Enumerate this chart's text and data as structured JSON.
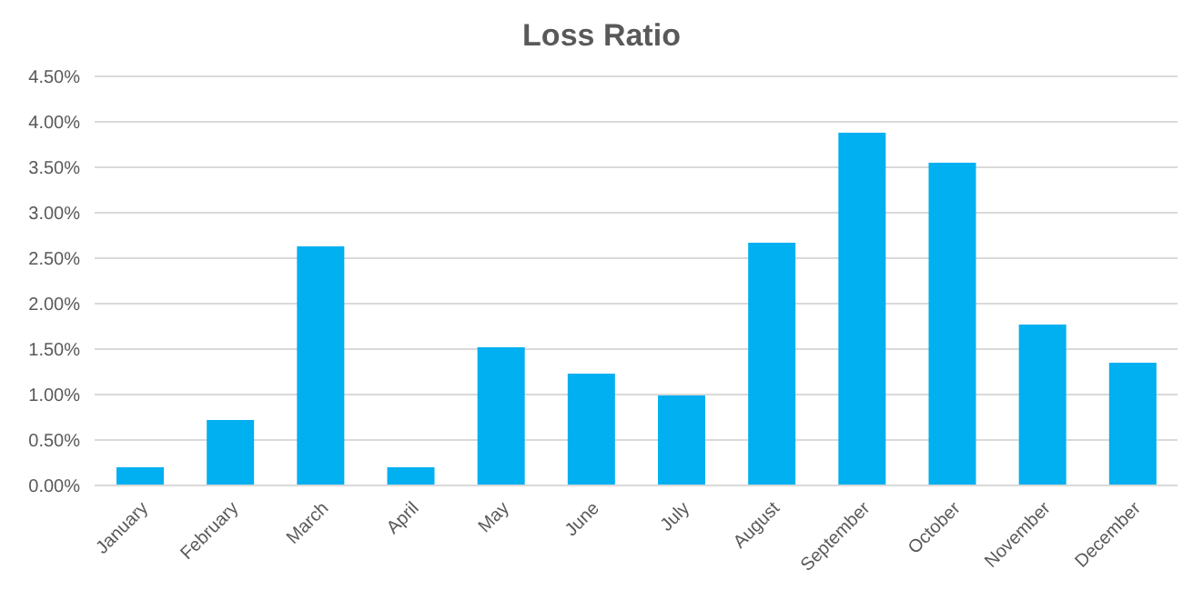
{
  "chart_data": {
    "type": "bar",
    "title": "Loss Ratio",
    "categories": [
      "January",
      "February",
      "March",
      "April",
      "May",
      "June",
      "July",
      "August",
      "September",
      "October",
      "November",
      "December"
    ],
    "values": [
      0.2,
      0.72,
      2.63,
      0.2,
      1.52,
      1.23,
      0.99,
      2.67,
      3.88,
      3.55,
      1.77,
      1.35
    ],
    "color": "#00b0f0",
    "ylim": [
      0,
      4.5
    ],
    "yticks": [
      {
        "value": 0,
        "label": "0.00%"
      },
      {
        "value": 0.5,
        "label": "0.50%"
      },
      {
        "value": 1,
        "label": "1.00%"
      },
      {
        "value": 1.5,
        "label": "1.50%"
      },
      {
        "value": 2,
        "label": "2.00%"
      },
      {
        "value": 2.5,
        "label": "2.50%"
      },
      {
        "value": 3,
        "label": "3.00%"
      },
      {
        "value": 3.5,
        "label": "3.50%"
      },
      {
        "value": 4,
        "label": "4.00%"
      },
      {
        "value": 4.5,
        "label": "4.50%"
      }
    ],
    "grid": "y"
  }
}
